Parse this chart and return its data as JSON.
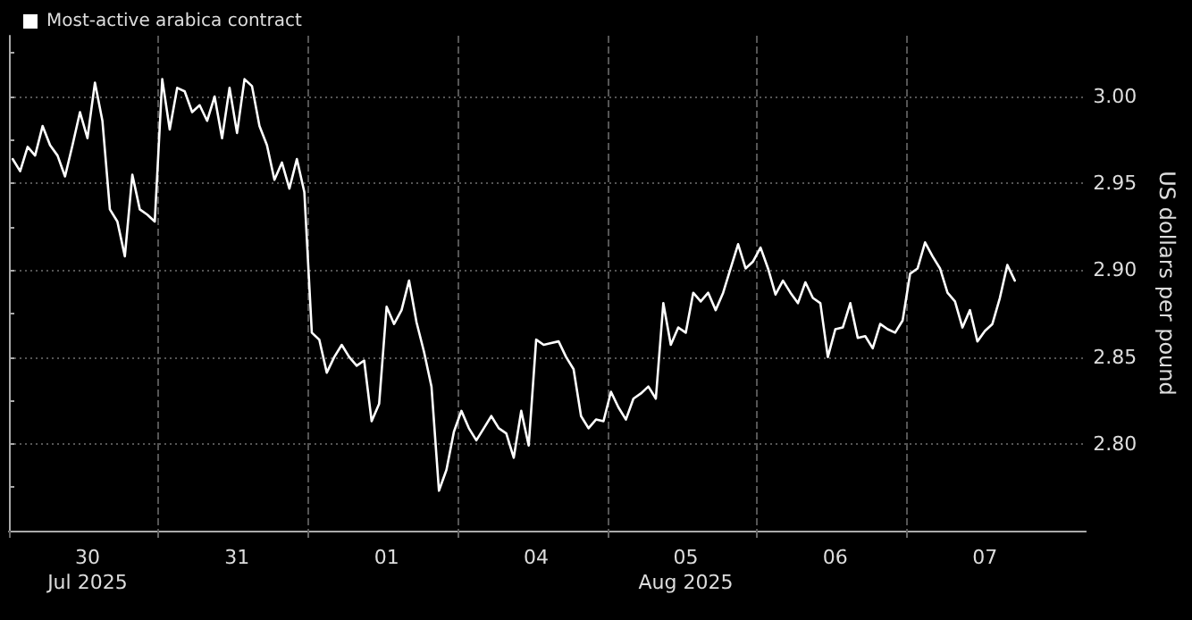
{
  "chart_data": {
    "type": "line",
    "ylabel": "US dollars per pound",
    "legend": "top left",
    "grid": true,
    "marker": "none",
    "line_style": "solid",
    "ylim": [
      2.75,
      3.035
    ],
    "yticks": [
      {
        "value": 2.775,
        "label": null
      },
      {
        "value": 2.8,
        "label": "2.80"
      },
      {
        "value": 2.825,
        "label": null
      },
      {
        "value": 2.85,
        "label": "2.85"
      },
      {
        "value": 2.875,
        "label": null
      },
      {
        "value": 2.9,
        "label": "2.90"
      },
      {
        "value": 2.925,
        "label": null
      },
      {
        "value": 2.95,
        "label": "2.95"
      },
      {
        "value": 2.975,
        "label": null
      },
      {
        "value": 3,
        "label": "3.00"
      },
      {
        "value": 3.025,
        "label": null
      }
    ],
    "categories": [
      null,
      null,
      null,
      null,
      null,
      null,
      null,
      null,
      null,
      null,
      "30\nJul 2025",
      null,
      null,
      null,
      null,
      null,
      null,
      null,
      null,
      null,
      null,
      null,
      null,
      null,
      null,
      null,
      null,
      null,
      null,
      null,
      "31",
      null,
      null,
      null,
      null,
      null,
      null,
      null,
      null,
      null,
      null,
      null,
      null,
      null,
      null,
      null,
      null,
      null,
      null,
      null,
      "01",
      null,
      null,
      null,
      null,
      null,
      null,
      null,
      null,
      null,
      null,
      null,
      null,
      null,
      null,
      null,
      null,
      null,
      null,
      null,
      "04",
      null,
      null,
      null,
      null,
      null,
      null,
      null,
      null,
      null,
      null,
      null,
      null,
      null,
      null,
      null,
      null,
      null,
      null,
      null,
      "05\nAug 2025",
      null,
      null,
      null,
      null,
      null,
      null,
      null,
      null,
      null,
      null,
      null,
      null,
      null,
      null,
      null,
      null,
      null,
      null,
      null,
      "06",
      null,
      null,
      null,
      null,
      null,
      null,
      null,
      null,
      null,
      null,
      null,
      null,
      null,
      null,
      null,
      null,
      null,
      null,
      null,
      "07",
      null,
      null,
      null,
      null,
      null,
      null,
      null,
      null,
      null,
      null,
      null,
      null,
      null
    ],
    "series": [
      {
        "name": "Most-active arabica contract",
        "color": "#ffffff",
        "values": [
          2.964,
          2.957,
          2.971,
          2.966,
          2.983,
          2.972,
          2.966,
          2.954,
          2.972,
          2.991,
          2.976,
          3.008,
          2.986,
          2.935,
          2.928,
          2.908,
          2.955,
          2.935,
          2.932,
          2.928,
          3.01,
          2.981,
          3.005,
          3.003,
          2.991,
          2.995,
          2.986,
          3,
          2.976,
          3.005,
          2.979,
          3.01,
          3.006,
          2.983,
          2.972,
          2.952,
          2.962,
          2.947,
          2.964,
          2.945,
          2.864,
          2.86,
          2.841,
          2.85,
          2.857,
          2.85,
          2.845,
          2.848,
          2.813,
          2.823,
          2.879,
          2.869,
          2.877,
          2.894,
          2.87,
          2.853,
          2.833,
          2.773,
          2.785,
          2.807,
          2.819,
          2.809,
          2.802,
          2.809,
          2.816,
          2.809,
          2.806,
          2.792,
          2.819,
          2.799,
          2.86,
          2.857,
          2.858,
          2.859,
          2.85,
          2.843,
          2.816,
          2.809,
          2.814,
          2.813,
          2.83,
          2.821,
          2.814,
          2.826,
          2.829,
          2.833,
          2.826,
          2.881,
          2.857,
          2.867,
          2.864,
          2.887,
          2.882,
          2.887,
          2.877,
          2.887,
          2.901,
          2.915,
          2.901,
          2.905,
          2.913,
          2.901,
          2.886,
          2.894,
          2.887,
          2.881,
          2.893,
          2.884,
          2.881,
          2.85,
          2.866,
          2.867,
          2.881,
          2.861,
          2.862,
          2.855,
          2.869,
          2.866,
          2.864,
          2.871,
          2.898,
          2.901,
          2.916,
          2.908,
          2.901,
          2.887,
          2.882,
          2.867,
          2.877,
          2.859,
          2.865,
          2.869,
          2.884,
          2.903,
          2.894,
          null,
          null,
          null,
          null,
          null,
          null,
          null,
          null,
          null
        ]
      }
    ]
  }
}
